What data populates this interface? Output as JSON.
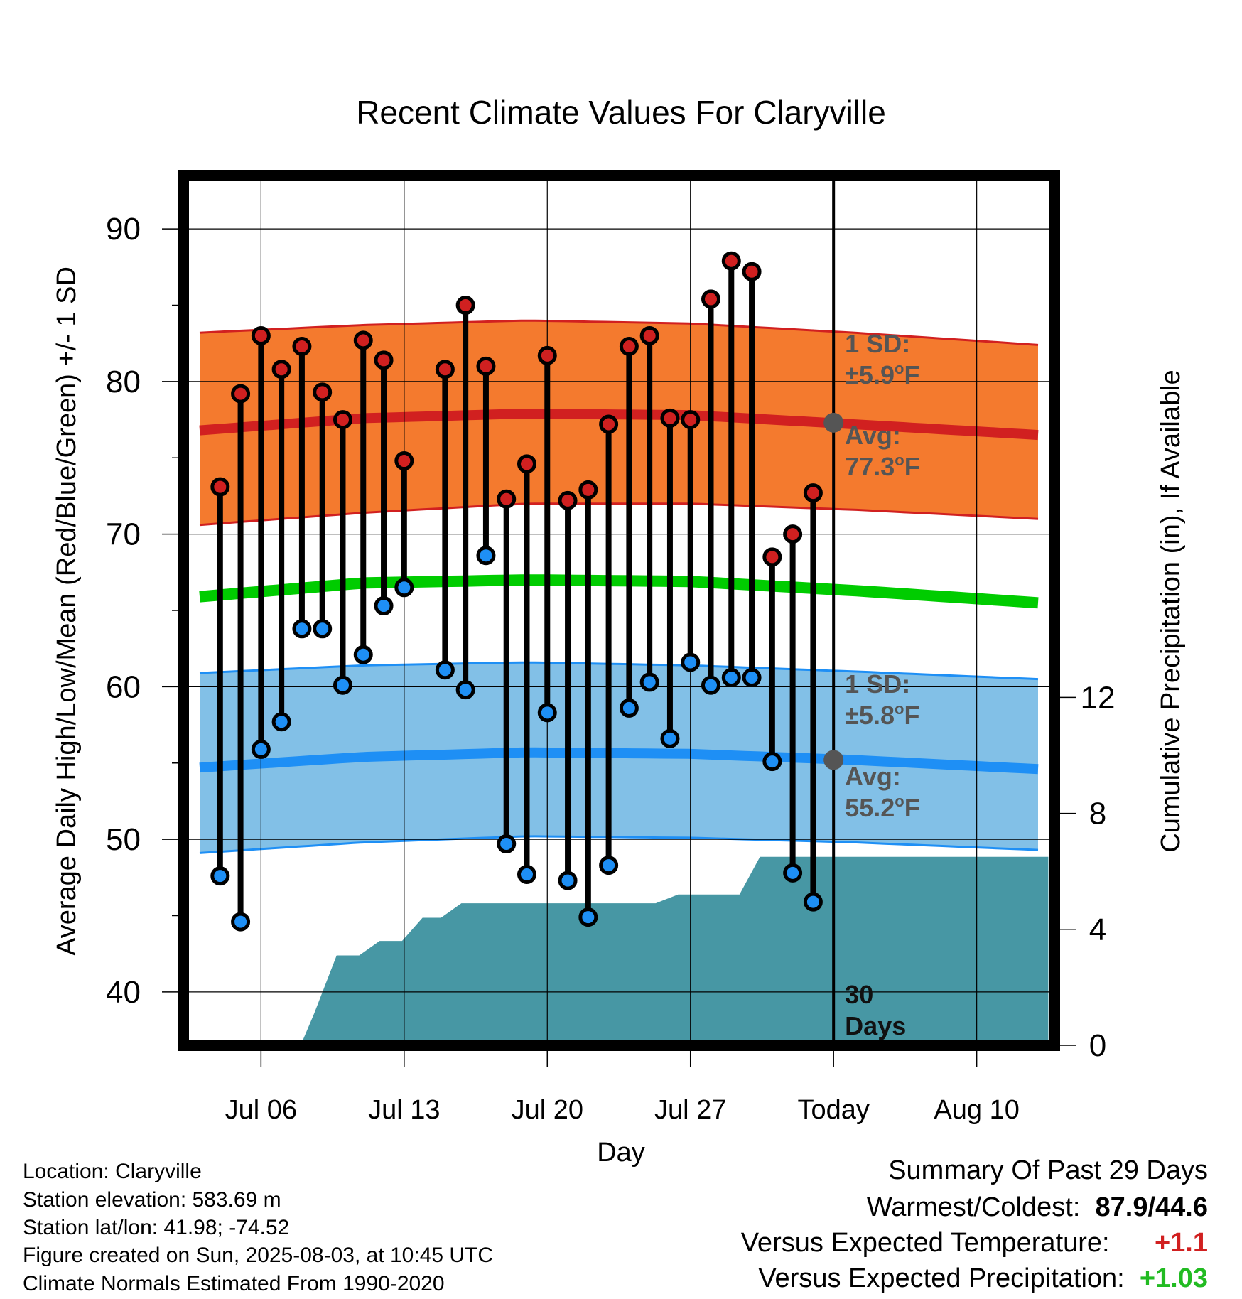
{
  "chart_data": {
    "type": "line",
    "title": "Recent Climate Values For Claryville",
    "xlabel": "Day",
    "ylabel": "Average Daily High/Low/Mean (Red/Blue/Green) +/- 1 SD",
    "y2label": "Cumulative Precipitation (in), If Available",
    "x_tick_labels": [
      "Jul 06",
      "Jul 13",
      "Jul 20",
      "Jul 27",
      "Today",
      "Aug 10"
    ],
    "x_tick_days": [
      3,
      10,
      17,
      24,
      31,
      38
    ],
    "xlim": [
      -0.8,
      41.8
    ],
    "ylim": [
      36.5,
      93.5
    ],
    "y_ticks": [
      40,
      50,
      60,
      70,
      80,
      90
    ],
    "y2lim": [
      0,
      30
    ],
    "y2_ticks": [
      0,
      4,
      8,
      12
    ],
    "grid": true,
    "today_day": 31,
    "today_label": [
      "30",
      "Days"
    ],
    "normal_high": {
      "days": [
        0,
        8,
        16,
        24,
        32,
        41
      ],
      "mean": [
        76.8,
        77.6,
        77.9,
        77.8,
        77.2,
        76.5
      ],
      "upper": [
        83.2,
        83.7,
        84.0,
        83.8,
        83.2,
        82.4
      ],
      "lower": [
        70.6,
        71.4,
        72.0,
        72.0,
        71.6,
        71.0
      ],
      "sd_label": "1 SD:",
      "sd_value": "±5.9",
      "avg_label": "Avg:",
      "avg_value": "77.3",
      "avg_marker": 77.3
    },
    "normal_low": {
      "days": [
        0,
        8,
        16,
        24,
        32,
        41
      ],
      "mean": [
        54.7,
        55.4,
        55.7,
        55.6,
        55.2,
        54.6
      ],
      "upper": [
        60.9,
        61.4,
        61.6,
        61.4,
        61.0,
        60.5
      ],
      "lower": [
        49.1,
        49.8,
        50.2,
        50.1,
        49.8,
        49.3
      ],
      "sd_label": "1 SD:",
      "sd_value": "±5.8",
      "avg_label": "Avg:",
      "avg_value": "55.2",
      "avg_marker": 55.2
    },
    "normal_mean": {
      "days": [
        0,
        8,
        16,
        24,
        32,
        41
      ],
      "values": [
        65.9,
        66.8,
        67.0,
        66.9,
        66.3,
        65.5
      ]
    },
    "unit_suffix": "F",
    "daily": [
      {
        "day": 1,
        "high": 73.1,
        "low": 47.6
      },
      {
        "day": 2,
        "high": 79.2,
        "low": 44.6
      },
      {
        "day": 3,
        "high": 83.0,
        "low": 55.9
      },
      {
        "day": 4,
        "high": 80.8,
        "low": 57.7
      },
      {
        "day": 5,
        "high": 82.3,
        "low": 63.8
      },
      {
        "day": 6,
        "high": 79.3,
        "low": 63.8
      },
      {
        "day": 7,
        "high": 77.5,
        "low": 60.1
      },
      {
        "day": 8,
        "high": 82.7,
        "low": 62.1
      },
      {
        "day": 9,
        "high": 81.4,
        "low": 65.3
      },
      {
        "day": 10,
        "high": 74.8,
        "low": 66.5
      },
      {
        "day": 12,
        "high": 80.8,
        "low": 61.1
      },
      {
        "day": 13,
        "high": 85.0,
        "low": 59.8
      },
      {
        "day": 14,
        "high": 81.0,
        "low": 68.6
      },
      {
        "day": 15,
        "high": 72.3,
        "low": 49.7
      },
      {
        "day": 16,
        "high": 74.6,
        "low": 47.7
      },
      {
        "day": 17,
        "high": 81.7,
        "low": 58.3
      },
      {
        "day": 18,
        "high": 72.2,
        "low": 47.3
      },
      {
        "day": 19,
        "high": 72.9,
        "low": 44.9
      },
      {
        "day": 20,
        "high": 77.2,
        "low": 48.3
      },
      {
        "day": 21,
        "high": 82.3,
        "low": 58.6
      },
      {
        "day": 22,
        "high": 83.0,
        "low": 60.3
      },
      {
        "day": 23,
        "high": 77.6,
        "low": 56.6
      },
      {
        "day": 24,
        "high": 77.5,
        "low": 61.6
      },
      {
        "day": 25,
        "high": 85.4,
        "low": 60.1
      },
      {
        "day": 26,
        "high": 87.9,
        "low": 60.6
      },
      {
        "day": 27,
        "high": 87.2,
        "low": 60.6
      },
      {
        "day": 28,
        "high": 68.5,
        "low": 55.1
      },
      {
        "day": 29,
        "high": 70.0,
        "low": 47.8
      },
      {
        "day": 30,
        "high": 72.7,
        "low": 45.9
      }
    ],
    "precip": {
      "days": [
        5,
        5.6,
        6.7,
        7.8,
        8.8,
        9.9,
        10.9,
        11.8,
        12.8,
        13.8,
        14.8,
        22.3,
        23.4,
        24.3,
        25.4,
        26.4,
        27.4,
        28,
        41.5
      ],
      "values": [
        0.1,
        1.1,
        3.1,
        3.1,
        3.6,
        3.6,
        4.4,
        4.4,
        4.9,
        4.9,
        4.9,
        4.9,
        5.2,
        5.2,
        5.2,
        5.2,
        6.5,
        6.5,
        6.5
      ]
    },
    "colors": {
      "high_band": "#f47a2e",
      "high_line": "#d12020",
      "low_band": "#82c0e7",
      "low_line": "#1e8ff5",
      "mean_line": "#00cc00",
      "precip": "#4797a4",
      "high_dot": "#d02020",
      "low_dot": "#1e8ff5",
      "annotation": "#555555",
      "avg_marker": "#555555"
    }
  },
  "footer": {
    "location": "Location: Claryville",
    "elevation": "Station elevation: 583.69 m",
    "latlon": "Station lat/lon: 41.98; -74.52",
    "created": "Figure created on Sun, 2025-08-03, at 10:45 UTC",
    "normals": "Climate Normals Estimated From 1990-2020"
  },
  "summary": {
    "title": "Summary Of Past 29 Days",
    "warm_cold_label": "Warmest/Coldest:",
    "warm_cold_value": "87.9/44.6",
    "temp_label": "Versus Expected Temperature:",
    "temp_value": "+1.1",
    "temp_color": "#d12020",
    "precip_label": "Versus Expected Precipitation:",
    "precip_value": "+1.03",
    "precip_color": "#22bb22"
  }
}
